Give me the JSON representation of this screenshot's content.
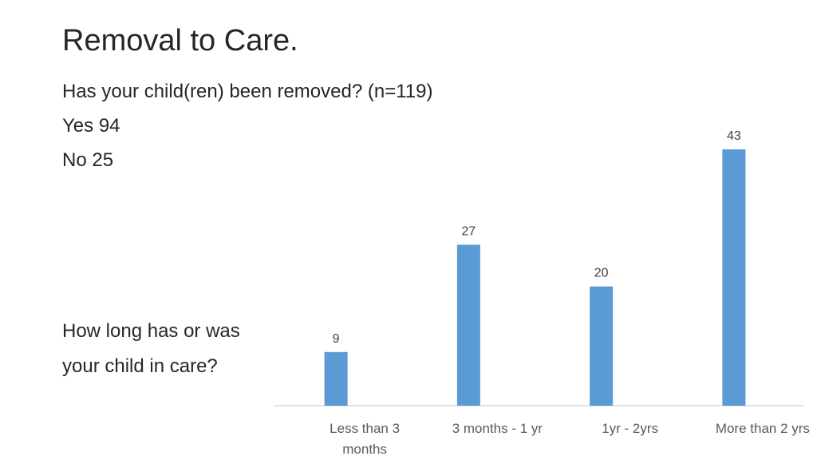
{
  "slide": {
    "title": "Removal to Care.",
    "question": "Has your child(ren) been removed? (n=119)",
    "yes_line": "Yes 94",
    "no_line": "No 25",
    "chart_question_line1": "How long has or was",
    "chart_question_line2": "your child in care?"
  },
  "colors": {
    "bar": "#5B9BD5",
    "axis": "#D9D9D9",
    "text": "#262626",
    "label": "#404040",
    "tick": "#595959"
  },
  "chart_data": {
    "type": "bar",
    "categories": [
      [
        "Less than 3",
        "months"
      ],
      [
        "3 months - 1 yr"
      ],
      [
        "1yr - 2yrs"
      ],
      [
        "More than 2 yrs"
      ]
    ],
    "values": [
      9,
      27,
      20,
      43
    ],
    "data_labels": [
      "9",
      "27",
      "20",
      "43"
    ],
    "title": "",
    "xlabel": "",
    "ylabel": "",
    "ylim": [
      0,
      43
    ],
    "grid": false,
    "legend": "none"
  }
}
